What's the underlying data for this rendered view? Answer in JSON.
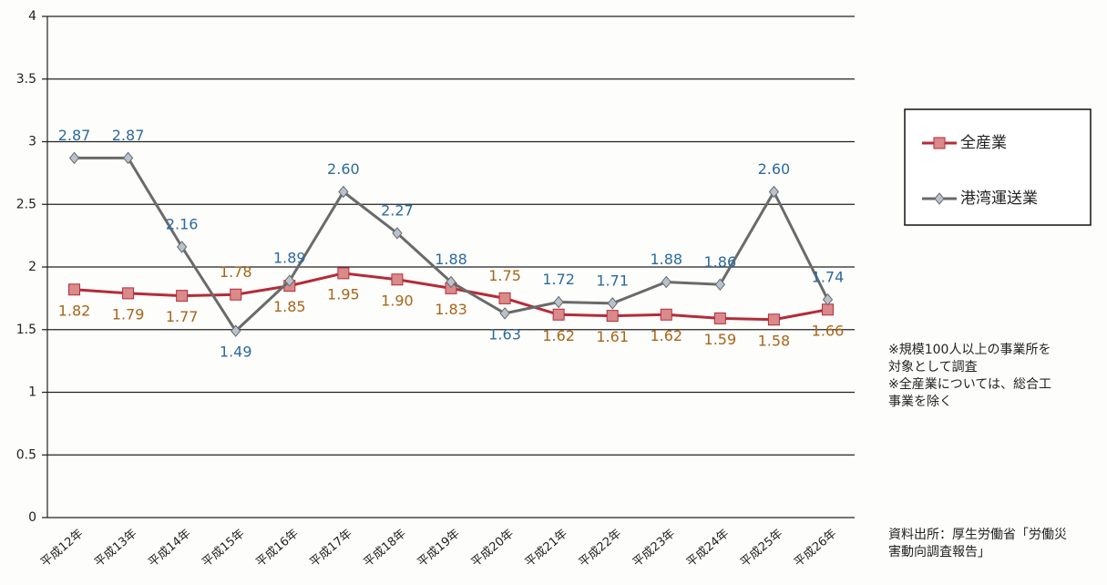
{
  "chart_data": {
    "type": "line",
    "categories": [
      "平成12年",
      "平成13年",
      "平成14年",
      "平成15年",
      "平成16年",
      "平成17年",
      "平成18年",
      "平成19年",
      "平成20年",
      "平成21年",
      "平成22年",
      "平成23年",
      "平成24年",
      "平成25年",
      "平成26年"
    ],
    "series": [
      {
        "name": "全産業",
        "color": "#b52b3a",
        "label_color": "#a8651b",
        "marker": "square",
        "values": [
          1.82,
          1.79,
          1.77,
          1.78,
          1.85,
          1.95,
          1.9,
          1.83,
          1.75,
          1.62,
          1.61,
          1.62,
          1.59,
          1.58,
          1.66
        ],
        "value_labels": [
          "1.82",
          "1.79",
          "1.77",
          "1.78",
          "1.85",
          "1.95",
          "1.90",
          "1.83",
          "1.75",
          "1.62",
          "1.61",
          "1.62",
          "1.59",
          "1.58",
          "1.66"
        ]
      },
      {
        "name": "港湾運送業",
        "color": "#6a6a6a",
        "label_color": "#2c6a9e",
        "marker": "diamond",
        "values": [
          2.87,
          2.87,
          2.16,
          1.49,
          1.89,
          2.6,
          2.27,
          1.88,
          1.63,
          1.72,
          1.71,
          1.88,
          1.86,
          2.6,
          1.74
        ],
        "value_labels": [
          "2.87",
          "2.87",
          "2.16",
          "1.49",
          "1.89",
          "2.60",
          "2.27",
          "1.88",
          "1.63",
          "1.72",
          "1.71",
          "1.88",
          "1.86",
          "2.60",
          "1.74"
        ]
      }
    ],
    "ylim": [
      0,
      4
    ],
    "yticks": [
      0,
      0.5,
      1,
      1.5,
      2,
      2.5,
      3,
      3.5,
      4
    ],
    "grid": true,
    "legend": "right",
    "notes": [
      "※規模100人以上の事業所を",
      "対象として調査",
      "※全産業については、総合工",
      "事業を除く"
    ],
    "source": [
      "資料出所：厚生労働省「労働災",
      "害動向調査報告」"
    ]
  }
}
